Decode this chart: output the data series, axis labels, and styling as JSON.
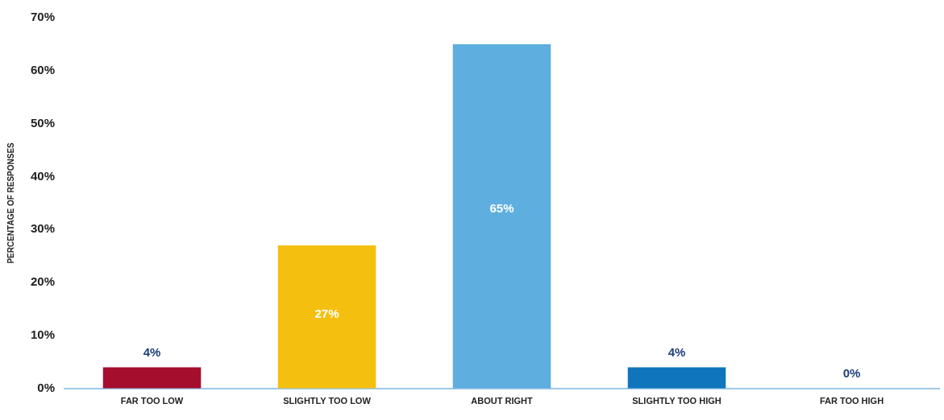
{
  "chart_data": {
    "type": "bar",
    "ylabel": "PERCENTAGE OF RESPONSES",
    "categories": [
      "FAR TOO LOW",
      "SLIGHTLY TOO LOW",
      "ABOUT RIGHT",
      "SLIGHTLY TOO HIGH",
      "FAR TOO HIGH"
    ],
    "values": [
      4,
      27,
      65,
      4,
      0
    ],
    "colors": [
      "#a50e2d",
      "#f5bf0f",
      "#5eaee0",
      "#0f75bc",
      "#1f4e8c"
    ],
    "value_labels": [
      "4%",
      "27%",
      "65%",
      "4%",
      "0%"
    ],
    "ylim": [
      0,
      70
    ],
    "yticks": [
      {
        "value": 0,
        "label": "0%"
      },
      {
        "value": 10,
        "label": "10%"
      },
      {
        "value": 20,
        "label": "20%"
      },
      {
        "value": 30,
        "label": "30%"
      },
      {
        "value": 40,
        "label": "40%"
      },
      {
        "value": 50,
        "label": "50%"
      },
      {
        "value": 60,
        "label": "60%"
      },
      {
        "value": 70,
        "label": "70%"
      }
    ],
    "grid": false,
    "legend": false
  }
}
